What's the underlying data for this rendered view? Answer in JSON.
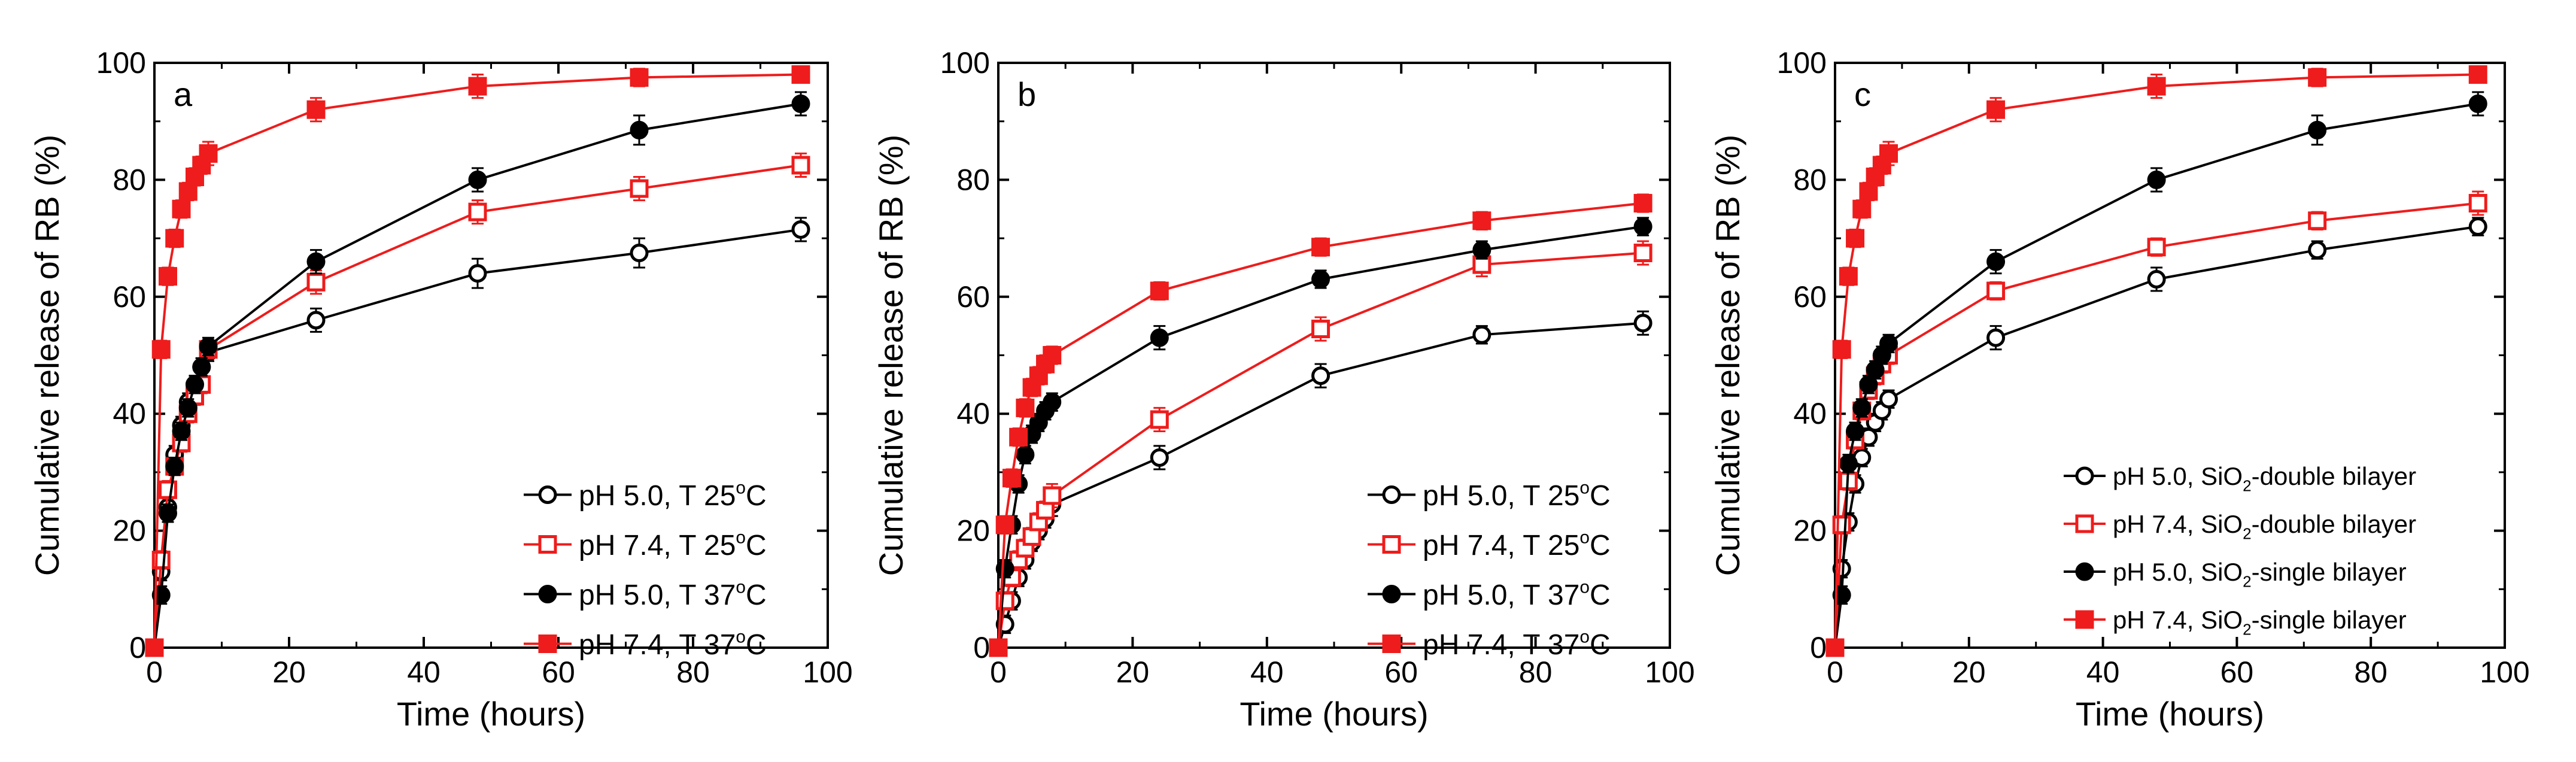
{
  "chart_data": [
    {
      "type": "line",
      "panel_label": "a",
      "title": "",
      "xlabel": "Time (hours)",
      "ylabel": "Cumulative release of RB (%)",
      "xlim": [
        0,
        100
      ],
      "ylim": [
        0,
        100
      ],
      "xticks": [
        "0",
        "20",
        "40",
        "60",
        "80",
        "100"
      ],
      "yticks": [
        "0",
        "20",
        "40",
        "60",
        "80",
        "100"
      ],
      "grid": false,
      "legend_position": "bottom-right",
      "series": [
        {
          "name": "pH 5.0, T 25oC",
          "label_main": "pH 5.0, T 25",
          "label_sup": "o",
          "label_end": "C",
          "color": "#000000",
          "marker": "circle-open",
          "x": [
            0,
            1,
            2,
            3,
            4,
            5,
            6,
            7,
            8,
            24,
            48,
            72,
            96
          ],
          "y": [
            0,
            13,
            24,
            33,
            38,
            42,
            45,
            48,
            50.5,
            56,
            64,
            67.5,
            71.5
          ],
          "err": [
            0,
            1.5,
            1.5,
            1.5,
            1.5,
            1.5,
            1.5,
            1.5,
            1.5,
            2,
            2.5,
            2.5,
            2
          ]
        },
        {
          "name": "pH 7.4, T 25oC",
          "label_main": "pH 7.4, T 25",
          "label_sup": "o",
          "label_end": "C",
          "color": "#ee1c1c",
          "marker": "square-open",
          "x": [
            0,
            1,
            2,
            3,
            4,
            5,
            6,
            7,
            8,
            24,
            48,
            72,
            96
          ],
          "y": [
            0,
            15,
            27,
            31,
            35,
            40,
            43,
            45,
            51,
            62.5,
            74.5,
            78.5,
            82.5
          ],
          "err": [
            0,
            1.5,
            1.5,
            1.5,
            1.5,
            1.5,
            1.5,
            1.5,
            1.5,
            2,
            2,
            2,
            2
          ]
        },
        {
          "name": "pH 5.0, T 37oC",
          "label_main": "pH 5.0, T 37",
          "label_sup": "o",
          "label_end": "C",
          "color": "#000000",
          "marker": "circle-filled",
          "x": [
            0,
            1,
            2,
            3,
            4,
            5,
            6,
            7,
            8,
            24,
            48,
            72,
            96
          ],
          "y": [
            0,
            9,
            23,
            31,
            37,
            41,
            45,
            48,
            51.5,
            66,
            80,
            88.5,
            93
          ],
          "err": [
            0,
            1.5,
            1.5,
            1.5,
            1.5,
            1.5,
            1.5,
            1.5,
            1.5,
            2,
            2,
            2.5,
            2
          ]
        },
        {
          "name": "pH 7.4, T 37oC",
          "label_main": "pH 7.4, T 37",
          "label_sup": "o",
          "label_end": "C",
          "color": "#ee1c1c",
          "marker": "square-filled",
          "x": [
            0,
            1,
            2,
            3,
            4,
            5,
            6,
            7,
            8,
            24,
            48,
            72,
            96
          ],
          "y": [
            0,
            51,
            63.5,
            70,
            75,
            78,
            80.5,
            82.5,
            84.5,
            92,
            96,
            97.5,
            98
          ],
          "err": [
            0,
            1.5,
            1.5,
            1.5,
            1.5,
            1.5,
            1.5,
            1.5,
            2,
            2,
            2,
            1.5,
            1
          ]
        }
      ]
    },
    {
      "type": "line",
      "panel_label": "b",
      "title": "",
      "xlabel": "Time (hours)",
      "ylabel": "Cumulative release of RB (%)",
      "xlim": [
        0,
        100
      ],
      "ylim": [
        0,
        100
      ],
      "xticks": [
        "0",
        "20",
        "40",
        "60",
        "80",
        "100"
      ],
      "yticks": [
        "0",
        "20",
        "40",
        "60",
        "80",
        "100"
      ],
      "grid": false,
      "legend_position": "bottom-right",
      "series": [
        {
          "name": "pH 5.0, T 25oC",
          "label_main": "pH 5.0, T 25",
          "label_sup": "o",
          "label_end": "C",
          "color": "#000000",
          "marker": "circle-open",
          "x": [
            0,
            1,
            2,
            3,
            4,
            5,
            6,
            7,
            8,
            24,
            48,
            72,
            96
          ],
          "y": [
            0,
            4,
            8,
            12,
            15,
            18,
            20,
            22,
            24.5,
            32.5,
            46.5,
            53.5,
            55.5
          ],
          "err": [
            0,
            1.5,
            1.5,
            1.5,
            1.5,
            1.5,
            1.5,
            1.5,
            2,
            2,
            2,
            1.5,
            2
          ]
        },
        {
          "name": "pH 7.4, T 25oC",
          "label_main": "pH 7.4, T 25",
          "label_sup": "o",
          "label_end": "C",
          "color": "#ee1c1c",
          "marker": "square-open",
          "x": [
            0,
            1,
            2,
            3,
            4,
            5,
            6,
            7,
            8,
            24,
            48,
            72,
            96
          ],
          "y": [
            0,
            8,
            12,
            15,
            17,
            19,
            21.5,
            23.5,
            26,
            39,
            54.5,
            65.5,
            67.5
          ],
          "err": [
            0,
            1.5,
            1.5,
            1.5,
            1.5,
            1.5,
            1.5,
            1.5,
            2,
            2,
            2,
            2,
            2
          ]
        },
        {
          "name": "pH 5.0, T 37oC",
          "label_main": "pH 5.0, T 37",
          "label_sup": "o",
          "label_end": "C",
          "color": "#000000",
          "marker": "circle-filled",
          "x": [
            0,
            1,
            2,
            3,
            4,
            5,
            6,
            7,
            8,
            24,
            48,
            72,
            96
          ],
          "y": [
            0,
            13.5,
            21,
            28,
            33,
            36.5,
            38.5,
            40.5,
            42,
            53,
            63,
            68,
            72
          ],
          "err": [
            0,
            1.5,
            1.5,
            1.5,
            1.5,
            1.5,
            1.5,
            1.5,
            1.5,
            2,
            1.5,
            1.5,
            1.5
          ]
        },
        {
          "name": "pH 7.4, T 37oC",
          "label_main": "pH 7.4, T 37",
          "label_sup": "o",
          "label_end": "C",
          "color": "#ee1c1c",
          "marker": "square-filled",
          "x": [
            0,
            1,
            2,
            3,
            4,
            5,
            6,
            7,
            8,
            24,
            48,
            72,
            96
          ],
          "y": [
            0,
            21,
            29,
            36,
            41,
            44.5,
            46.5,
            48.5,
            50,
            61,
            68.5,
            73,
            76
          ],
          "err": [
            0,
            1.5,
            1.5,
            1.5,
            1.5,
            1.5,
            1.5,
            1.5,
            1.5,
            1.5,
            1.5,
            1.5,
            1.5
          ]
        }
      ]
    },
    {
      "type": "line",
      "panel_label": "c",
      "title": "",
      "xlabel": "Time (hours)",
      "ylabel": "Cumulative release of RB (%)",
      "xlim": [
        0,
        100
      ],
      "ylim": [
        0,
        100
      ],
      "xticks": [
        "0",
        "20",
        "40",
        "60",
        "80",
        "100"
      ],
      "yticks": [
        "0",
        "20",
        "40",
        "60",
        "80",
        "100"
      ],
      "grid": false,
      "legend_position": "bottom-right",
      "series": [
        {
          "name": "pH 5.0, SiO2-double bilayer",
          "label_main": "pH 5.0, SiO",
          "label_sub": "2",
          "label_end": "-double bilayer",
          "color": "#000000",
          "marker": "circle-open",
          "x": [
            0,
            1,
            2,
            3,
            4,
            5,
            6,
            7,
            8,
            24,
            48,
            72,
            96
          ],
          "y": [
            0,
            13.5,
            21.5,
            28,
            32.5,
            36,
            38.5,
            40.5,
            42.5,
            53,
            63,
            68,
            72
          ],
          "err": [
            0,
            1.5,
            1.5,
            1.5,
            1.5,
            1.5,
            1.5,
            1.5,
            1.5,
            2,
            2,
            1.5,
            1.5
          ]
        },
        {
          "name": "pH 7.4, SiO2-double bilayer",
          "label_main": "pH 7.4, SiO",
          "label_sub": "2",
          "label_end": "-double bilayer",
          "color": "#ee1c1c",
          "marker": "square-open",
          "x": [
            0,
            1,
            2,
            3,
            4,
            5,
            6,
            7,
            8,
            24,
            48,
            72,
            96
          ],
          "y": [
            0,
            21,
            28.5,
            35.5,
            40.5,
            44,
            46.5,
            48.5,
            50,
            61,
            68.5,
            73,
            76
          ],
          "err": [
            0,
            1.5,
            1.5,
            1.5,
            1.5,
            1.5,
            1.5,
            1.5,
            1.5,
            1.5,
            1.5,
            1.5,
            2
          ]
        },
        {
          "name": "pH 5.0, SiO2-single bilayer",
          "label_main": "pH 5.0, SiO",
          "label_sub": "2",
          "label_end": "-single bilayer",
          "color": "#000000",
          "marker": "circle-filled",
          "x": [
            0,
            1,
            2,
            3,
            4,
            5,
            6,
            7,
            8,
            24,
            48,
            72,
            96
          ],
          "y": [
            0,
            9,
            31.5,
            37,
            41,
            45,
            47.5,
            50,
            52,
            66,
            80,
            88.5,
            93
          ],
          "err": [
            0,
            1.5,
            1.5,
            1.5,
            1.5,
            1.5,
            1.5,
            1.5,
            1.5,
            2,
            2,
            2.5,
            2
          ]
        },
        {
          "name": "pH 7.4, SiO2-single bilayer",
          "label_main": "pH 7.4, SiO",
          "label_sub": "2",
          "label_end": "-single bilayer",
          "color": "#ee1c1c",
          "marker": "square-filled",
          "x": [
            0,
            1,
            2,
            3,
            4,
            5,
            6,
            7,
            8,
            24,
            48,
            72,
            96
          ],
          "y": [
            0,
            51,
            63.5,
            70,
            75,
            78,
            80.5,
            82.5,
            84.5,
            92,
            96,
            97.5,
            98
          ],
          "err": [
            0,
            1.5,
            1.5,
            1.5,
            1.5,
            1.5,
            1.5,
            1.5,
            2,
            2,
            2,
            1.5,
            1
          ]
        }
      ]
    }
  ]
}
